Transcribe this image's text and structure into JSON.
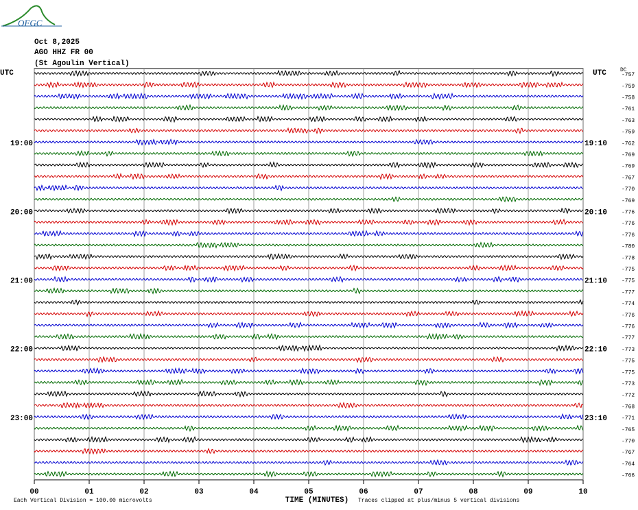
{
  "logo": "OFGC",
  "chart_data": {
    "type": "helicorder",
    "title": "Oct 8,2025",
    "subtitle": "AGO HHZ FR 00",
    "station_name": "(St Agoulin Vertical)",
    "left_axis_label": "UTC",
    "right_axis_label": "UTC",
    "offset_label": "DC",
    "xlabel": "TIME (MINUTES)",
    "xlim": [
      0,
      10
    ],
    "xticks": [
      {
        "value": 0,
        "label": "00"
      },
      {
        "value": 1,
        "label": "01"
      },
      {
        "value": 2,
        "label": "02"
      },
      {
        "value": 3,
        "label": "03"
      },
      {
        "value": 4,
        "label": "04"
      },
      {
        "value": 5,
        "label": "05"
      },
      {
        "value": 6,
        "label": "06"
      },
      {
        "value": 7,
        "label": "07"
      },
      {
        "value": 8,
        "label": "08"
      },
      {
        "value": 9,
        "label": "09"
      },
      {
        "value": 10,
        "label": "10"
      }
    ],
    "grid": true,
    "colors": [
      "#000000",
      "#d40000",
      "#0000d0",
      "#006a00"
    ],
    "left_labels": [
      null,
      null,
      null,
      null,
      null,
      null,
      "19:00",
      null,
      null,
      null,
      null,
      null,
      "20:00",
      null,
      null,
      null,
      null,
      null,
      "21:00",
      null,
      null,
      null,
      null,
      null,
      "22:00",
      null,
      null,
      null,
      null,
      null,
      "23:00",
      null,
      null,
      null,
      null,
      null
    ],
    "right_labels": [
      null,
      null,
      null,
      null,
      null,
      null,
      "19:10",
      null,
      null,
      null,
      null,
      null,
      "20:10",
      null,
      null,
      null,
      null,
      null,
      "21:10",
      null,
      null,
      null,
      null,
      null,
      "22:10",
      null,
      null,
      null,
      null,
      null,
      "23:10",
      null,
      null,
      null,
      null,
      null
    ],
    "offsets": [
      -757,
      -759,
      -758,
      -761,
      -763,
      -759,
      -762,
      -769,
      -769,
      -767,
      -770,
      -769,
      -776,
      -776,
      -776,
      -780,
      -778,
      -775,
      -775,
      -777,
      -774,
      -776,
      -776,
      -777,
      -773,
      -775,
      -775,
      -773,
      -772,
      -768,
      -771,
      -765,
      -770,
      -767,
      -764,
      -766
    ],
    "scale_note": "Each Vertical Division =  100.00 microvolts",
    "clip_note": "Traces clipped at plus/minus 5 vertical divisions"
  }
}
